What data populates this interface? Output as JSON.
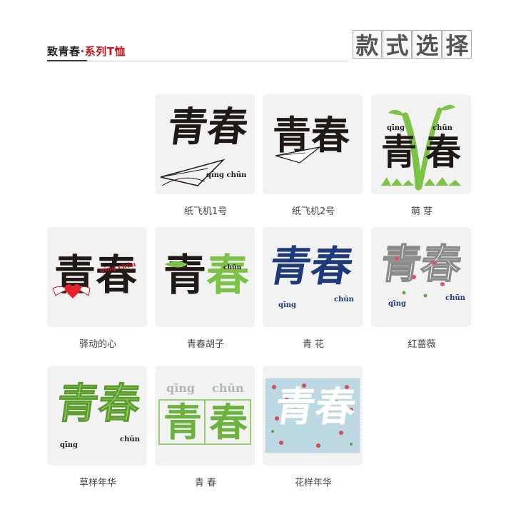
{
  "header": {
    "title_main": "致青春",
    "title_dot": "·",
    "title_accent": "系列T恤",
    "style_select": [
      "款",
      "式",
      "选",
      "择"
    ]
  },
  "colors": {
    "accent": "#c8161e",
    "green": "#7cc246",
    "dark_green": "#5a9a2c",
    "navy": "#1f3a7a",
    "text": "#222222"
  },
  "tiles": [
    {
      "name": "纸飞机1号",
      "art": "青春",
      "pinyin": "qīng chūn"
    },
    {
      "name": "纸飞机2号",
      "art": "青春"
    },
    {
      "name": "萌 芽",
      "art": "青春",
      "pinyin_left": "qīng",
      "pinyin_right": "chūn"
    },
    {
      "name": "驿动的心",
      "art": "青春",
      "pinyin": "qīng chūn"
    },
    {
      "name": "青春胡子",
      "art": "青春",
      "pinyin": "chūn"
    },
    {
      "name": "青 花",
      "art": "青春",
      "pinyin_left": "qīng",
      "pinyin_right": "chūn"
    },
    {
      "name": "红蔷薇",
      "art": "青春",
      "pinyin_left": "qīng",
      "pinyin_right": "chūn"
    },
    {
      "name": "草样年华",
      "art": "青春",
      "pinyin_left": "qīng",
      "pinyin_right": "chūn"
    },
    {
      "name": "青 春",
      "art": "青春",
      "pinyin_left": "qīng",
      "pinyin_right": "chūn"
    },
    {
      "name": "花样年华",
      "art": "青春"
    }
  ]
}
